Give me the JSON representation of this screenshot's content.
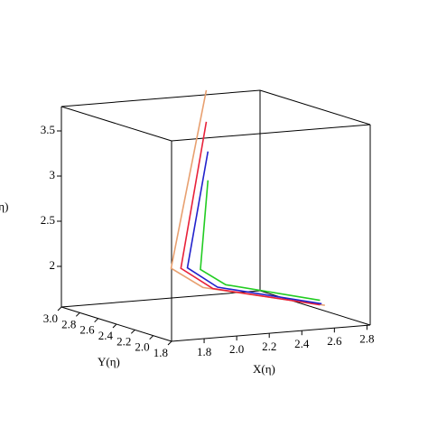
{
  "chart_data": {
    "type": "line3d",
    "xlabel": "X(η)",
    "ylabel": "Y(η)",
    "zlabel": "Z(η)",
    "xlim": [
      1.6,
      2.82
    ],
    "ylim": [
      1.8,
      3.0
    ],
    "zlim": [
      1.55,
      3.77
    ],
    "xticks": [
      1.8,
      {
        "value": 2,
        "label": "2.0"
      },
      2.2,
      2.4,
      2.6,
      2.8
    ],
    "yticks": [
      1.8,
      {
        "value": 2,
        "label": "2.0"
      },
      2.2,
      2.4,
      2.6,
      2.8,
      {
        "value": 3,
        "label": "3.0"
      }
    ],
    "zticks": [
      2,
      2.5,
      3,
      3.5
    ],
    "series": [
      {
        "color": "#e8a070",
        "x": [
          2.49,
          1.71,
          1.86,
          2.57
        ],
        "y": [
          3.0,
          2.0,
          1.92,
          1.85
        ],
        "z": [
          3.82,
          2.28,
          2.07,
          1.79
        ]
      },
      {
        "color": "#e8223a",
        "x": [
          2.49,
          1.77,
          1.92,
          2.54
        ],
        "y": [
          3.0,
          2.0,
          1.92,
          1.85
        ],
        "z": [
          3.47,
          2.27,
          2.05,
          1.8
        ]
      },
      {
        "color": "#2222cc",
        "x": [
          2.5,
          1.81,
          1.95,
          2.55
        ],
        "y": [
          3.0,
          2.0,
          1.92,
          1.85
        ],
        "z": [
          3.14,
          2.27,
          2.06,
          1.81
        ]
      },
      {
        "color": "#22cc22",
        "x": [
          2.5,
          1.89,
          2.0,
          2.54
        ],
        "y": [
          3.0,
          2.0,
          1.92,
          1.85
        ],
        "z": [
          2.82,
          2.24,
          2.08,
          1.85
        ]
      }
    ]
  }
}
